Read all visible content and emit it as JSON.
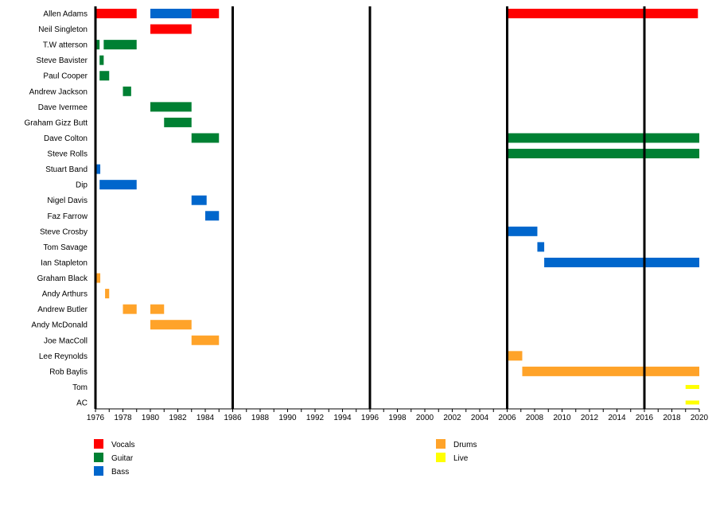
{
  "chart_data": {
    "type": "timeline",
    "xlim": [
      1976,
      2020
    ],
    "x_tick_labels": [
      "1976",
      "1978",
      "1980",
      "1982",
      "1984",
      "1986",
      "1988",
      "1990",
      "1992",
      "1994",
      "1996",
      "1998",
      "2000",
      "2002",
      "2004",
      "2006",
      "2008",
      "2010",
      "2012",
      "2014",
      "2016",
      "2018",
      "2020"
    ],
    "marker_lines": [
      1986,
      1996,
      2006,
      2016
    ],
    "roles": [
      {
        "name": "Vocals",
        "color": "#ff0000"
      },
      {
        "name": "Guitar",
        "color": "#008033"
      },
      {
        "name": "Bass",
        "color": "#0066cc"
      },
      {
        "name": "Drums",
        "color": "#ffa329"
      },
      {
        "name": "Live",
        "color": "#ffff00"
      }
    ],
    "members": [
      {
        "name": "Allen Adams",
        "periods": [
          [
            1976.05,
            1979,
            "Vocals"
          ],
          [
            1980,
            1983,
            "Bass"
          ],
          [
            1983,
            1985,
            "Vocals"
          ],
          [
            2006,
            2019.9,
            "Vocals"
          ]
        ]
      },
      {
        "name": "Neil Singleton",
        "periods": [
          [
            1980,
            1983,
            "Vocals"
          ]
        ]
      },
      {
        "name": "T.W atterson",
        "periods": [
          [
            1976.05,
            1976.3,
            "Guitar"
          ],
          [
            1976.6,
            1979,
            "Guitar"
          ]
        ]
      },
      {
        "name": "Steve Bavister",
        "periods": [
          [
            1976.3,
            1976.6,
            "Guitar"
          ]
        ]
      },
      {
        "name": "Paul Cooper",
        "periods": [
          [
            1976.3,
            1977,
            "Guitar"
          ]
        ]
      },
      {
        "name": "Andrew Jackson",
        "periods": [
          [
            1978,
            1978.6,
            "Guitar"
          ]
        ]
      },
      {
        "name": "Dave Ivermee",
        "periods": [
          [
            1980,
            1983,
            "Guitar"
          ]
        ]
      },
      {
        "name": "Graham Gizz Butt",
        "periods": [
          [
            1981,
            1983,
            "Guitar"
          ]
        ]
      },
      {
        "name": "Dave Colton",
        "periods": [
          [
            1983,
            1985,
            "Guitar"
          ],
          [
            2006,
            2020,
            "Guitar"
          ]
        ]
      },
      {
        "name": "Steve Rolls",
        "periods": [
          [
            2006,
            2020,
            "Guitar"
          ]
        ]
      },
      {
        "name": "Stuart Band",
        "periods": [
          [
            1976.05,
            1976.35,
            "Bass"
          ]
        ]
      },
      {
        "name": "Dip",
        "periods": [
          [
            1976.3,
            1979,
            "Bass"
          ]
        ]
      },
      {
        "name": "Nigel Davis",
        "periods": [
          [
            1983,
            1984.1,
            "Bass"
          ]
        ]
      },
      {
        "name": "Faz Farrow",
        "periods": [
          [
            1984,
            1985,
            "Bass"
          ]
        ]
      },
      {
        "name": "Steve Crosby",
        "periods": [
          [
            2006,
            2008.2,
            "Bass"
          ]
        ]
      },
      {
        "name": "Tom Savage",
        "periods": [
          [
            2008.2,
            2008.7,
            "Bass"
          ]
        ]
      },
      {
        "name": "Ian Stapleton",
        "periods": [
          [
            2008.7,
            2020,
            "Bass"
          ]
        ]
      },
      {
        "name": "Graham Black",
        "periods": [
          [
            1976.05,
            1976.35,
            "Drums"
          ]
        ]
      },
      {
        "name": "Andy Arthurs",
        "periods": [
          [
            1976.7,
            1977,
            "Drums"
          ]
        ]
      },
      {
        "name": "Andrew Butler",
        "periods": [
          [
            1978,
            1979,
            "Drums"
          ],
          [
            1980,
            1981,
            "Drums"
          ]
        ]
      },
      {
        "name": "Andy McDonald",
        "periods": [
          [
            1980,
            1983,
            "Drums"
          ]
        ]
      },
      {
        "name": "Joe MacColl",
        "periods": [
          [
            1983,
            1985,
            "Drums"
          ]
        ]
      },
      {
        "name": "Lee Reynolds",
        "periods": [
          [
            2006,
            2007.1,
            "Drums"
          ]
        ]
      },
      {
        "name": "Rob Baylis",
        "periods": [
          [
            2007.1,
            2020,
            "Drums"
          ]
        ]
      },
      {
        "name": "Tom",
        "periods": [
          [
            2019,
            2020,
            "Live"
          ]
        ]
      },
      {
        "name": "AC",
        "periods": [
          [
            2019,
            2020,
            "Live"
          ]
        ]
      }
    ],
    "legend_placement": "bottom",
    "grid": false
  }
}
